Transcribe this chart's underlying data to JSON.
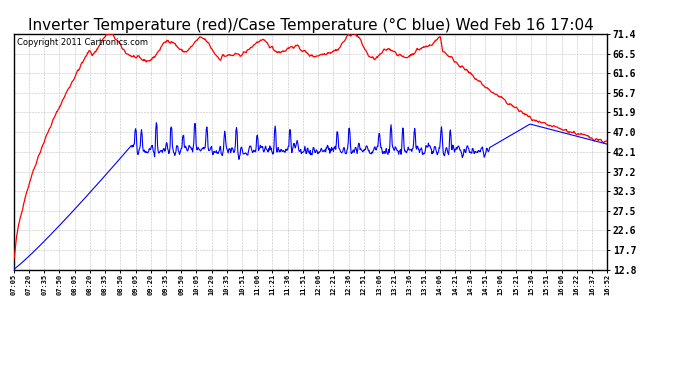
{
  "title": "Inverter Temperature (red)/Case Temperature (°C blue) Wed Feb 16 17:04",
  "copyright": "Copyright 2011 Cartronics.com",
  "yticks": [
    12.8,
    17.7,
    22.6,
    27.5,
    32.3,
    37.2,
    42.1,
    47.0,
    51.9,
    56.7,
    61.6,
    66.5,
    71.4
  ],
  "ylim": [
    12.8,
    71.4
  ],
  "xtick_labels": [
    "07:05",
    "07:20",
    "07:35",
    "07:50",
    "08:05",
    "08:20",
    "08:35",
    "08:50",
    "09:05",
    "09:20",
    "09:35",
    "09:50",
    "10:05",
    "10:20",
    "10:35",
    "10:51",
    "11:06",
    "11:21",
    "11:36",
    "11:51",
    "12:06",
    "12:21",
    "12:36",
    "12:51",
    "13:06",
    "13:21",
    "13:36",
    "13:51",
    "14:06",
    "14:21",
    "14:36",
    "14:51",
    "15:06",
    "15:21",
    "15:36",
    "15:51",
    "16:06",
    "16:22",
    "16:37",
    "16:52"
  ],
  "background_color": "#ffffff",
  "plot_background": "#ffffff",
  "grid_color": "#b0b0b0",
  "red_color": "#ff0000",
  "blue_color": "#0000ff",
  "title_fontsize": 11,
  "copyright_fontsize": 6
}
